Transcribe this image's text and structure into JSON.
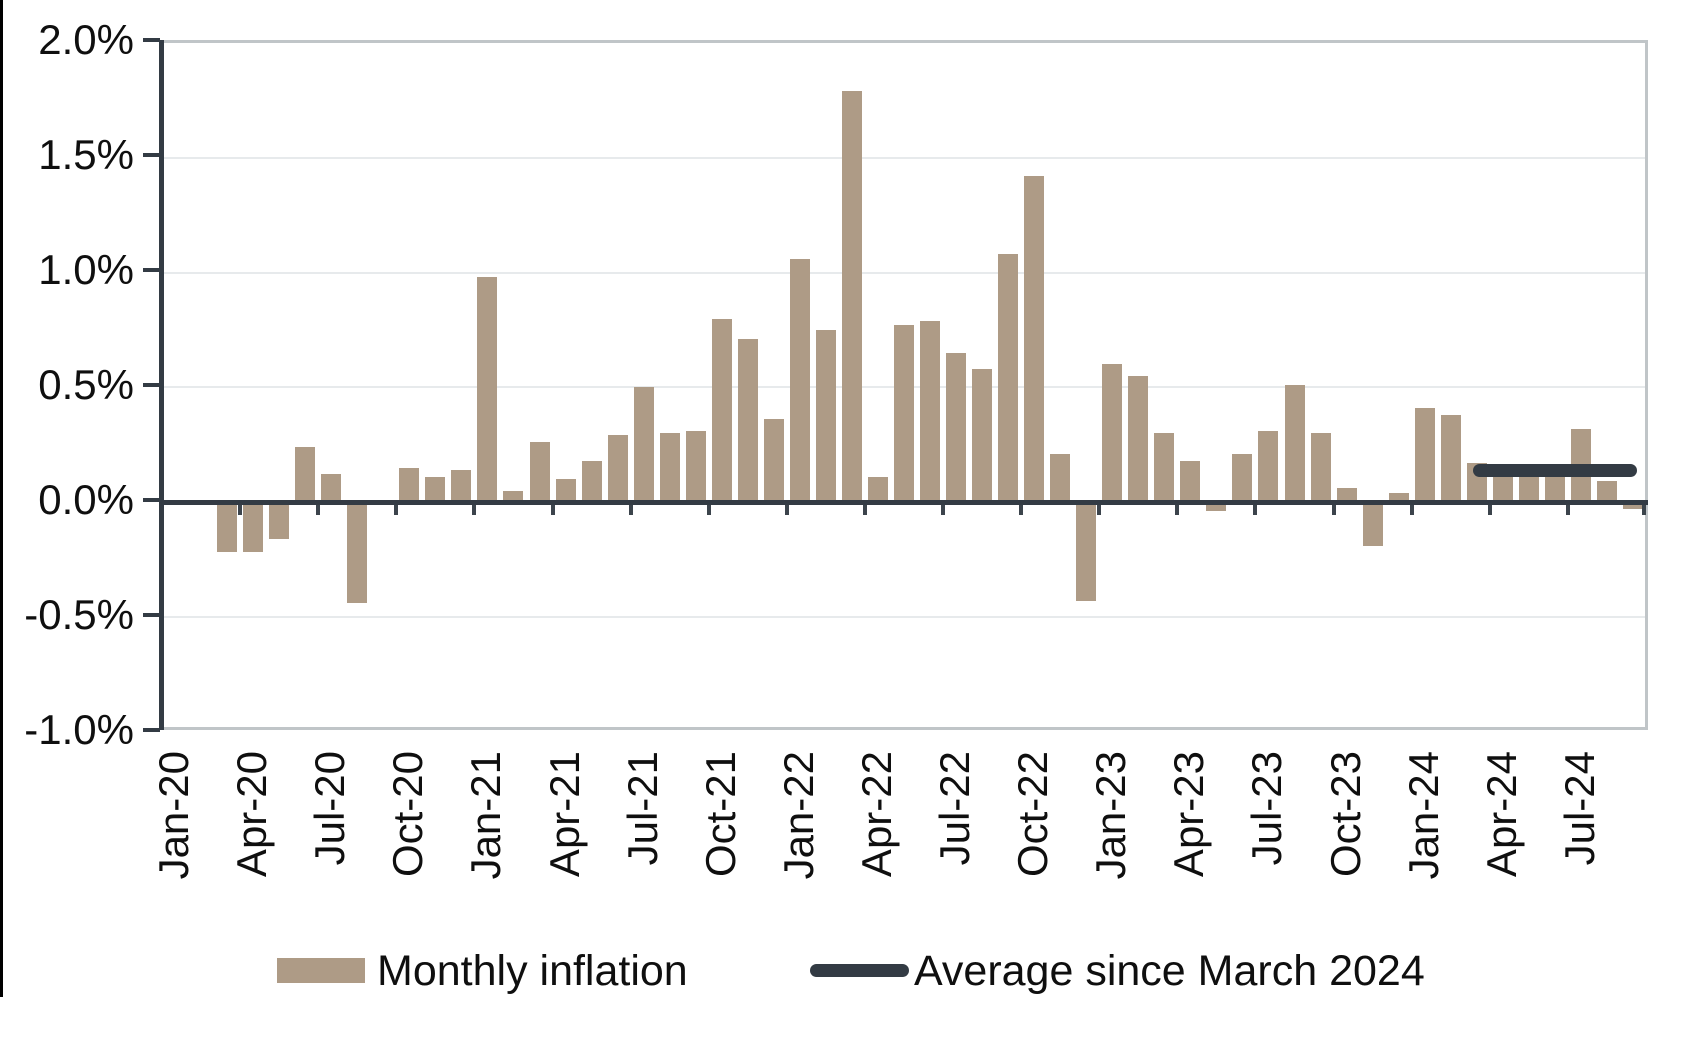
{
  "chart_data": {
    "type": "bar",
    "title": "",
    "months": [
      "Jan-20",
      "Feb-20",
      "Mar-20",
      "Apr-20",
      "May-20",
      "Jun-20",
      "Jul-20",
      "Aug-20",
      "Sep-20",
      "Oct-20",
      "Nov-20",
      "Dec-20",
      "Jan-21",
      "Feb-21",
      "Mar-21",
      "Apr-21",
      "May-21",
      "Jun-21",
      "Jul-21",
      "Aug-21",
      "Sep-21",
      "Oct-21",
      "Nov-21",
      "Dec-21",
      "Jan-22",
      "Feb-22",
      "Mar-22",
      "Apr-22",
      "May-22",
      "Jun-22",
      "Jul-22",
      "Aug-22",
      "Sep-22",
      "Oct-22",
      "Nov-22",
      "Dec-22",
      "Jan-23",
      "Feb-23",
      "Mar-23",
      "Apr-23",
      "May-23",
      "Jun-23",
      "Jul-23",
      "Aug-23",
      "Sep-23",
      "Oct-23",
      "Nov-23",
      "Dec-23",
      "Jan-24",
      "Feb-24",
      "Mar-24",
      "Apr-24",
      "May-24",
      "Jun-24",
      "Jul-24",
      "Aug-24",
      "Sep-24"
    ],
    "values": [
      0.0,
      -0.01,
      -0.22,
      -0.22,
      -0.16,
      0.24,
      0.12,
      -0.44,
      0.0,
      0.15,
      0.11,
      0.14,
      0.98,
      0.05,
      0.26,
      0.1,
      0.18,
      0.29,
      0.5,
      0.3,
      0.31,
      0.8,
      0.71,
      0.36,
      1.06,
      0.75,
      1.79,
      0.11,
      0.77,
      0.79,
      0.65,
      0.58,
      1.08,
      1.42,
      0.21,
      -0.43,
      0.6,
      0.55,
      0.3,
      0.18,
      -0.04,
      0.21,
      0.31,
      0.51,
      0.3,
      0.06,
      -0.19,
      0.04,
      0.41,
      0.38,
      0.17,
      0.14,
      0.14,
      0.14,
      0.32,
      0.09,
      -0.03
    ],
    "unit": "%",
    "x_tick_labels": [
      "Jan-20",
      "Apr-20",
      "Jul-20",
      "Oct-20",
      "Jan-21",
      "Apr-21",
      "Jul-21",
      "Oct-21",
      "Jan-22",
      "Apr-22",
      "Jul-22",
      "Oct-22",
      "Jan-23",
      "Apr-23",
      "Jul-23",
      "Oct-23",
      "Jan-24",
      "Apr-24",
      "Jul-24"
    ],
    "y_tick_labels": [
      "2.0%",
      "1.5%",
      "1.0%",
      "0.5%",
      "0.0%",
      "-0.5%",
      "-1.0%"
    ],
    "ylim": [
      -1.0,
      2.0
    ],
    "grid": "horizontal",
    "average_line": {
      "value": 0.14,
      "start_month": "Mar-24",
      "end_month": "Sep-24"
    },
    "legend": [
      {
        "label": "Monthly inflation",
        "type": "bar"
      },
      {
        "label": "Average since March 2024",
        "type": "line"
      }
    ],
    "colors": {
      "bar": "#ae9b86",
      "line": "#333b44",
      "axis": "#333b44",
      "grid": "#e7eaec",
      "plot_border": "#c0c5c8",
      "text": "#0f0f0f"
    },
    "legend_position": "bottom"
  }
}
